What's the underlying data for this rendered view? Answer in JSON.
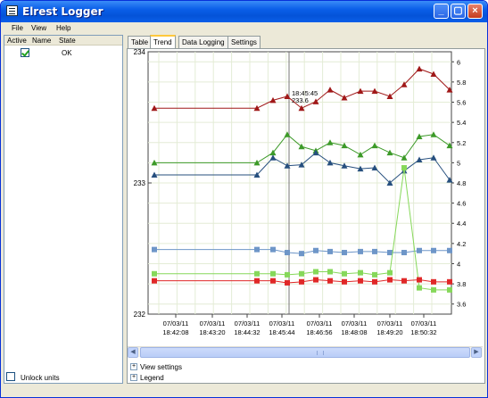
{
  "window": {
    "title": "Elrest Logger",
    "icon": "app-window-icon"
  },
  "menu": [
    {
      "label": "File",
      "underline": "F"
    },
    {
      "label": "View",
      "underline": "V"
    },
    {
      "label": "Help",
      "underline": "H"
    }
  ],
  "left_panel": {
    "columns": [
      "Active",
      "Name",
      "State"
    ],
    "rows": [
      {
        "active": true,
        "name": "",
        "state": "OK"
      }
    ],
    "unlock_label": "Unlock units"
  },
  "tabs": [
    {
      "label": "Table",
      "active": false
    },
    {
      "label": "Trend",
      "active": true
    },
    {
      "label": "Data Logging",
      "active": false
    },
    {
      "label": "Settings",
      "active": false
    }
  ],
  "bottom": {
    "view_settings": "View settings",
    "legend": "Legend"
  },
  "chart_data": {
    "type": "line",
    "left_axis": {
      "ticks": [
        "234",
        "233",
        "232"
      ],
      "ylim": [
        232,
        234
      ]
    },
    "right_axis": {
      "ticks": [
        "6",
        "5.8",
        "5.6",
        "5.4",
        "5.2",
        "5",
        "4.8",
        "4.6",
        "4.4",
        "4.2",
        "4",
        "3.8",
        "3.6"
      ],
      "ylim": [
        3.5,
        6.1
      ]
    },
    "x_ticks": [
      [
        "07/03/11",
        "18:42:08"
      ],
      [
        "07/03/11",
        "18:43:20"
      ],
      [
        "07/03/11",
        "18:44:32"
      ],
      [
        "07/03/11",
        "18:45:44"
      ],
      [
        "07/03/11",
        "18:46:56"
      ],
      [
        "07/03/11",
        "18:48:08"
      ],
      [
        "07/03/11",
        "18:49:20"
      ],
      [
        "07/03/11",
        "18:50:32"
      ]
    ],
    "cursor": {
      "time": "18:45:45",
      "value": "233.6"
    },
    "grid": true,
    "series": [
      {
        "color": "#a01818",
        "marker": "triangle",
        "axis": "left",
        "start": 233.57,
        "values": [
          233.57,
          233.63,
          233.66,
          233.57,
          233.62,
          233.71,
          233.65,
          233.7,
          233.7,
          233.66,
          233.75,
          233.87,
          233.83,
          233.71
        ]
      },
      {
        "color": "#3c9a28",
        "marker": "triangle",
        "axis": "right",
        "start": 5.0,
        "values": [
          5.0,
          5.1,
          5.28,
          5.16,
          5.12,
          5.2,
          5.17,
          5.08,
          5.17,
          5.1,
          5.05,
          5.26,
          5.28,
          5.17
        ]
      },
      {
        "color": "#264f7e",
        "marker": "triangle",
        "axis": "right",
        "start": 4.88,
        "values": [
          4.88,
          5.05,
          4.97,
          4.98,
          5.1,
          5.0,
          4.97,
          4.94,
          4.95,
          4.8,
          4.92,
          5.03,
          5.05,
          4.83
        ]
      },
      {
        "color": "#6e96c8",
        "marker": "square",
        "axis": "right",
        "start": 4.14,
        "values": [
          4.14,
          4.14,
          4.11,
          4.1,
          4.13,
          4.12,
          4.11,
          4.12,
          4.12,
          4.11,
          4.11,
          4.13,
          4.13,
          4.13
        ]
      },
      {
        "color": "#86d85a",
        "marker": "square",
        "axis": "right",
        "start": 3.9,
        "values": [
          3.9,
          3.9,
          3.89,
          3.9,
          3.92,
          3.92,
          3.9,
          3.91,
          3.89,
          3.91,
          4.95,
          3.76,
          3.74,
          3.74
        ]
      },
      {
        "color": "#e02828",
        "marker": "square",
        "axis": "right",
        "start": 3.83,
        "values": [
          3.83,
          3.83,
          3.81,
          3.82,
          3.84,
          3.83,
          3.82,
          3.83,
          3.82,
          3.84,
          3.83,
          3.84,
          3.82,
          3.82
        ]
      }
    ]
  }
}
